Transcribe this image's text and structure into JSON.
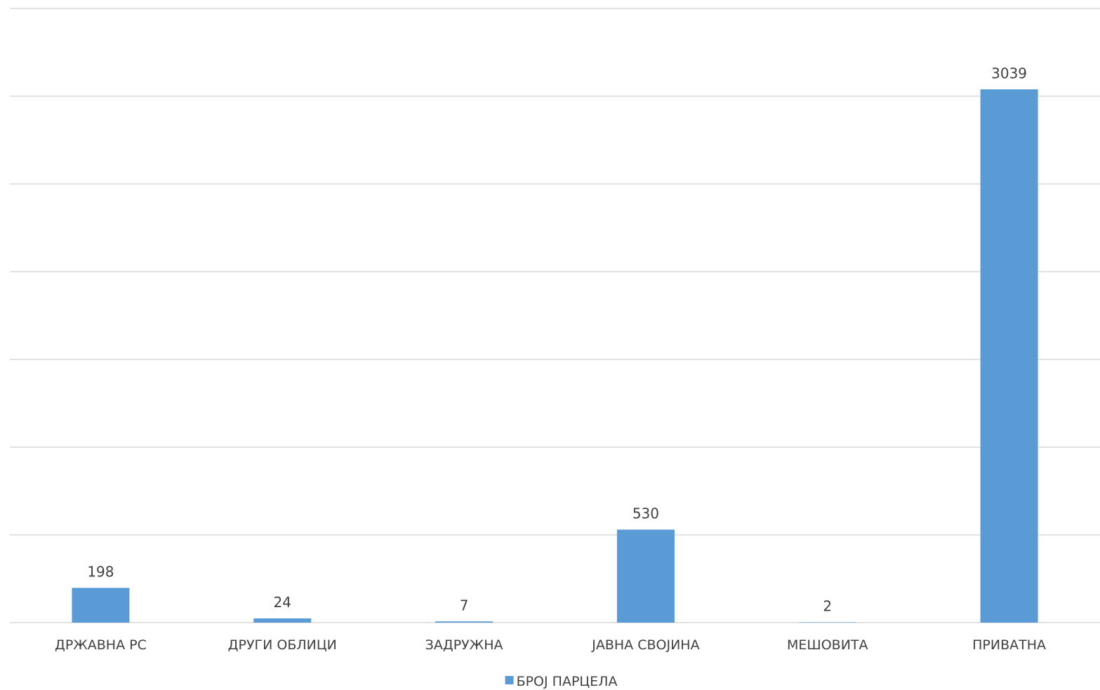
{
  "chart_data": {
    "type": "bar",
    "title": "",
    "xlabel": "",
    "ylabel": "",
    "categories": [
      "ДРЖАВНА РС",
      "ДРУГИ ОБЛИЦИ",
      "ЗАДРУЖНА",
      "ЈАВНА СВОЈИНА",
      "МЕШОВИТА",
      "ПРИВАТНА"
    ],
    "series": [
      {
        "name": "БРОЈ ПАРЦЕЛА",
        "values": [
          198,
          24,
          7,
          530,
          2,
          3039
        ]
      }
    ],
    "data_labels": [
      "198",
      "24",
      "7",
      "530",
      "2",
      "3039"
    ],
    "ylim": [
      0,
      3500
    ],
    "y_gridline_step": 500,
    "y_tick_labels_visible": false,
    "grid": true,
    "legend_position": "bottom",
    "colors": {
      "series": "#5b9bd5",
      "grid": "#d9d9d9",
      "text": "#404040"
    }
  }
}
